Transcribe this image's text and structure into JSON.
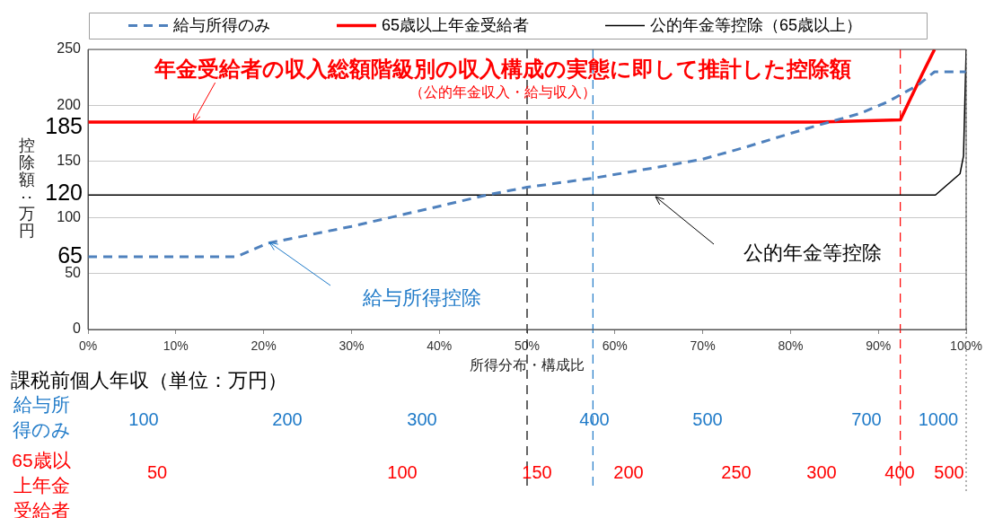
{
  "chart_data": {
    "type": "line",
    "xlabel": "所得分布・構成比",
    "ylabel": "控除額：万円",
    "series": [
      {
        "name": "給与所得のみ",
        "color": "#4f81bd",
        "line_style": "dashed",
        "x": [
          0,
          16.9,
          20.5,
          30,
          40,
          45.4,
          50,
          57.5,
          65,
          70,
          75,
          80,
          83,
          88,
          91,
          94.5,
          96.4,
          100
        ],
        "values": [
          65,
          65,
          77,
          92,
          110,
          120,
          127,
          135,
          145,
          152,
          163,
          175,
          182,
          193,
          203,
          218,
          230,
          230
        ]
      },
      {
        "name": "65歳以上年金受給者",
        "color": "#ff0000",
        "x": [
          0,
          83,
          92.5,
          95,
          96.4
        ],
        "values": [
          185,
          185,
          187,
          228,
          250
        ]
      },
      {
        "name": "公的年金等控除（65歳以上）",
        "color": "#000000",
        "x": [
          0,
          96.5,
          99.3,
          99.7,
          100
        ],
        "values": [
          120,
          120,
          139,
          155,
          250
        ]
      }
    ],
    "xlim": [
      0,
      100
    ],
    "xticks": [
      {
        "value": 0,
        "label": "0%"
      },
      {
        "value": 10,
        "label": "10%"
      },
      {
        "value": 20,
        "label": "20%"
      },
      {
        "value": 30,
        "label": "30%"
      },
      {
        "value": 40,
        "label": "40%"
      },
      {
        "value": 50,
        "label": "50%"
      },
      {
        "value": 60,
        "label": "60%"
      },
      {
        "value": 70,
        "label": "70%"
      },
      {
        "value": 80,
        "label": "80%"
      },
      {
        "value": 90,
        "label": "90%"
      },
      {
        "value": 100,
        "label": "100%"
      }
    ],
    "ylim": [
      0,
      250
    ],
    "yticks": [
      0,
      50,
      100,
      150,
      200,
      250
    ],
    "grid": "y",
    "legend": "top",
    "ref_lines": [
      {
        "axis": "x",
        "value": 50,
        "color": "#000000",
        "line_style": "dashed"
      },
      {
        "axis": "x",
        "value": 57.5,
        "color": "#1f7ac8",
        "line_style": "dashed"
      },
      {
        "axis": "x",
        "value": 92.5,
        "color": "#ff0000",
        "line_style": "dashed"
      },
      {
        "axis": "x",
        "value": 100,
        "color": "#808080",
        "line_style": "dotted"
      }
    ],
    "annotations": [
      {
        "text": "年金受給者の収入総額階級別の収入構成の実態に即して推計した控除額",
        "x": 12,
        "y": 185
      },
      "（公的年金収入・給与収入）",
      "公的年金等控除",
      "給与所得控除",
      "課税前個人年収（単位：万円）",
      "185",
      "120",
      "65",
      "給与所得のみ",
      "100",
      "200",
      "300",
      "400",
      "500",
      "700",
      "1000",
      "65歳以上年金受給者",
      "50",
      "100",
      "150",
      "200",
      "250",
      "300",
      "400",
      "500"
    ]
  }
}
